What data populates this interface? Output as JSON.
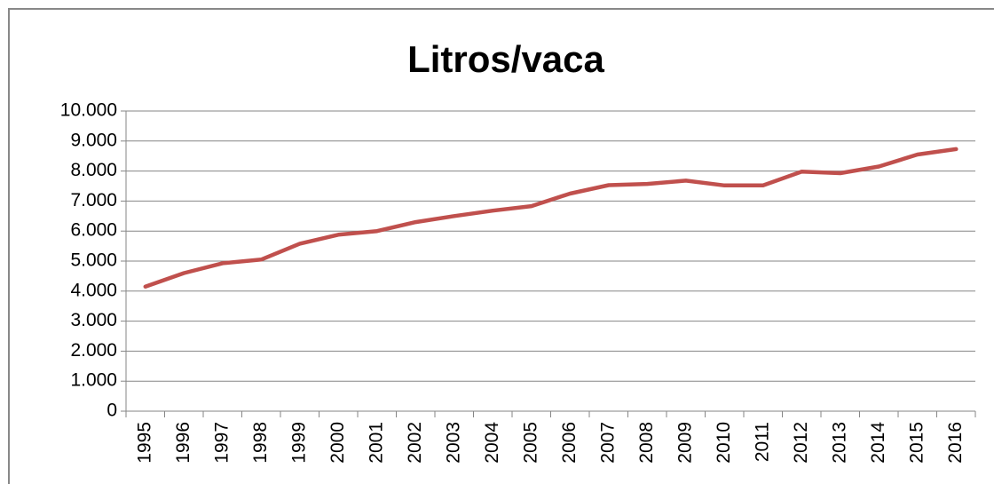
{
  "chart_data": {
    "type": "line",
    "title": "Litros/vaca",
    "categories": [
      "1995",
      "1996",
      "1997",
      "1998",
      "1999",
      "2000",
      "2001",
      "2002",
      "2003",
      "2004",
      "2005",
      "2006",
      "2007",
      "2008",
      "2009",
      "2010",
      "2011",
      "2012",
      "2013",
      "2014",
      "2015",
      "2016"
    ],
    "series": [
      {
        "name": "Litros/vaca",
        "color": "#c0504d",
        "values": [
          4150,
          4600,
          4930,
          5050,
          5580,
          5880,
          6000,
          6300,
          6500,
          6680,
          6830,
          7250,
          7530,
          7570,
          7680,
          7520,
          7520,
          7980,
          7930,
          8150,
          8550,
          8730
        ]
      }
    ],
    "ylim": [
      0,
      10000
    ],
    "yticks": [
      0,
      {
        "value": 1000,
        "label": "1.000"
      },
      {
        "value": 2000,
        "label": "2.000"
      },
      {
        "value": 3000,
        "label": "3.000"
      },
      {
        "value": 4000,
        "label": "4.000"
      },
      {
        "value": 5000,
        "label": "5.000"
      },
      {
        "value": 6000,
        "label": "6.000"
      },
      {
        "value": 7000,
        "label": "7.000"
      },
      {
        "value": 8000,
        "label": "8.000"
      },
      {
        "value": 9000,
        "label": "9.000"
      },
      {
        "value": 10000,
        "label": "10.000"
      }
    ],
    "grid": true
  }
}
